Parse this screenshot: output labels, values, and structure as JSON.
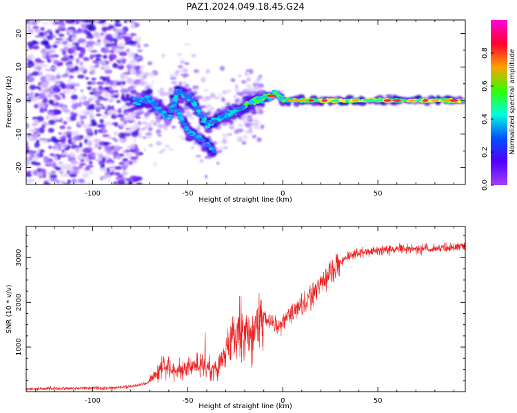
{
  "title": "PAZ1.2024.049.18.45.G24",
  "chart_data": [
    {
      "type": "heatmap",
      "xlabel": "Height of straight line (km)",
      "ylabel": "Frequency (Hz)",
      "xlim": [
        -135,
        96
      ],
      "ylim": [
        -25,
        24
      ],
      "xticks": [
        -100,
        -50,
        0,
        50
      ],
      "yticks": [
        -20,
        -10,
        0,
        10,
        20
      ],
      "colorbar": {
        "label": "Normalized spectral amplitude",
        "range": [
          0,
          1
        ],
        "ticks": [
          0.0,
          0.2,
          0.4,
          0.6,
          0.8
        ],
        "colormap": "gist_rainbow",
        "colors": [
          "#ff00e0",
          "#ff0030",
          "#ffa000",
          "#30ff00",
          "#00ffe0",
          "#0050ff",
          "#5000ff",
          "#a040ff"
        ]
      },
      "ridge": [
        {
          "x": -78,
          "y": 0
        },
        {
          "x": -70,
          "y": 0
        },
        {
          "x": -60,
          "y": -5
        },
        {
          "x": -55,
          "y": 3
        },
        {
          "x": -48,
          "y": 0
        },
        {
          "x": -40,
          "y": -7
        },
        {
          "x": -32,
          "y": -5
        },
        {
          "x": -24,
          "y": -3
        },
        {
          "x": -15,
          "y": 0
        },
        {
          "x": -8,
          "y": 1
        },
        {
          "x": -3,
          "y": 2
        },
        {
          "x": 0,
          "y": 0
        },
        {
          "x": 10,
          "y": 0
        },
        {
          "x": 50,
          "y": 0
        },
        {
          "x": 96,
          "y": 0
        }
      ],
      "secondary_ridge": [
        {
          "x": -58,
          "y": 0
        },
        {
          "x": -50,
          "y": -9
        },
        {
          "x": -42,
          "y": -12
        },
        {
          "x": -36,
          "y": -15
        }
      ]
    },
    {
      "type": "line",
      "xlabel": "Height of straight line (km)",
      "ylabel": "SNR (10 * v/v)",
      "xlim": [
        -135,
        96
      ],
      "ylim": [
        0,
        3700
      ],
      "xticks": [
        -100,
        -50,
        0,
        50
      ],
      "yticks": [
        1000,
        2000,
        3000
      ],
      "series": [
        {
          "color": "#ee2222",
          "points": [
            {
              "x": -135,
              "y": 60
            },
            {
              "x": -110,
              "y": 80
            },
            {
              "x": -90,
              "y": 80
            },
            {
              "x": -80,
              "y": 120
            },
            {
              "x": -72,
              "y": 180
            },
            {
              "x": -67,
              "y": 350
            },
            {
              "x": -63,
              "y": 560
            },
            {
              "x": -57,
              "y": 470
            },
            {
              "x": -52,
              "y": 470
            },
            {
              "x": -47,
              "y": 560
            },
            {
              "x": -43,
              "y": 600
            },
            {
              "x": -38,
              "y": 540
            },
            {
              "x": -34,
              "y": 520
            },
            {
              "x": -30,
              "y": 900
            },
            {
              "x": -26,
              "y": 1250
            },
            {
              "x": -22,
              "y": 1450
            },
            {
              "x": -17,
              "y": 1250
            },
            {
              "x": -12,
              "y": 1650
            },
            {
              "x": -7,
              "y": 1650
            },
            {
              "x": -3,
              "y": 1450
            },
            {
              "x": 0,
              "y": 1550
            },
            {
              "x": 5,
              "y": 1750
            },
            {
              "x": 10,
              "y": 1950
            },
            {
              "x": 15,
              "y": 2150
            },
            {
              "x": 20,
              "y": 2450
            },
            {
              "x": 25,
              "y": 2700
            },
            {
              "x": 30,
              "y": 2900
            },
            {
              "x": 35,
              "y": 3050
            },
            {
              "x": 45,
              "y": 3150
            },
            {
              "x": 60,
              "y": 3200
            },
            {
              "x": 75,
              "y": 3200
            },
            {
              "x": 96,
              "y": 3250
            }
          ]
        }
      ]
    }
  ]
}
